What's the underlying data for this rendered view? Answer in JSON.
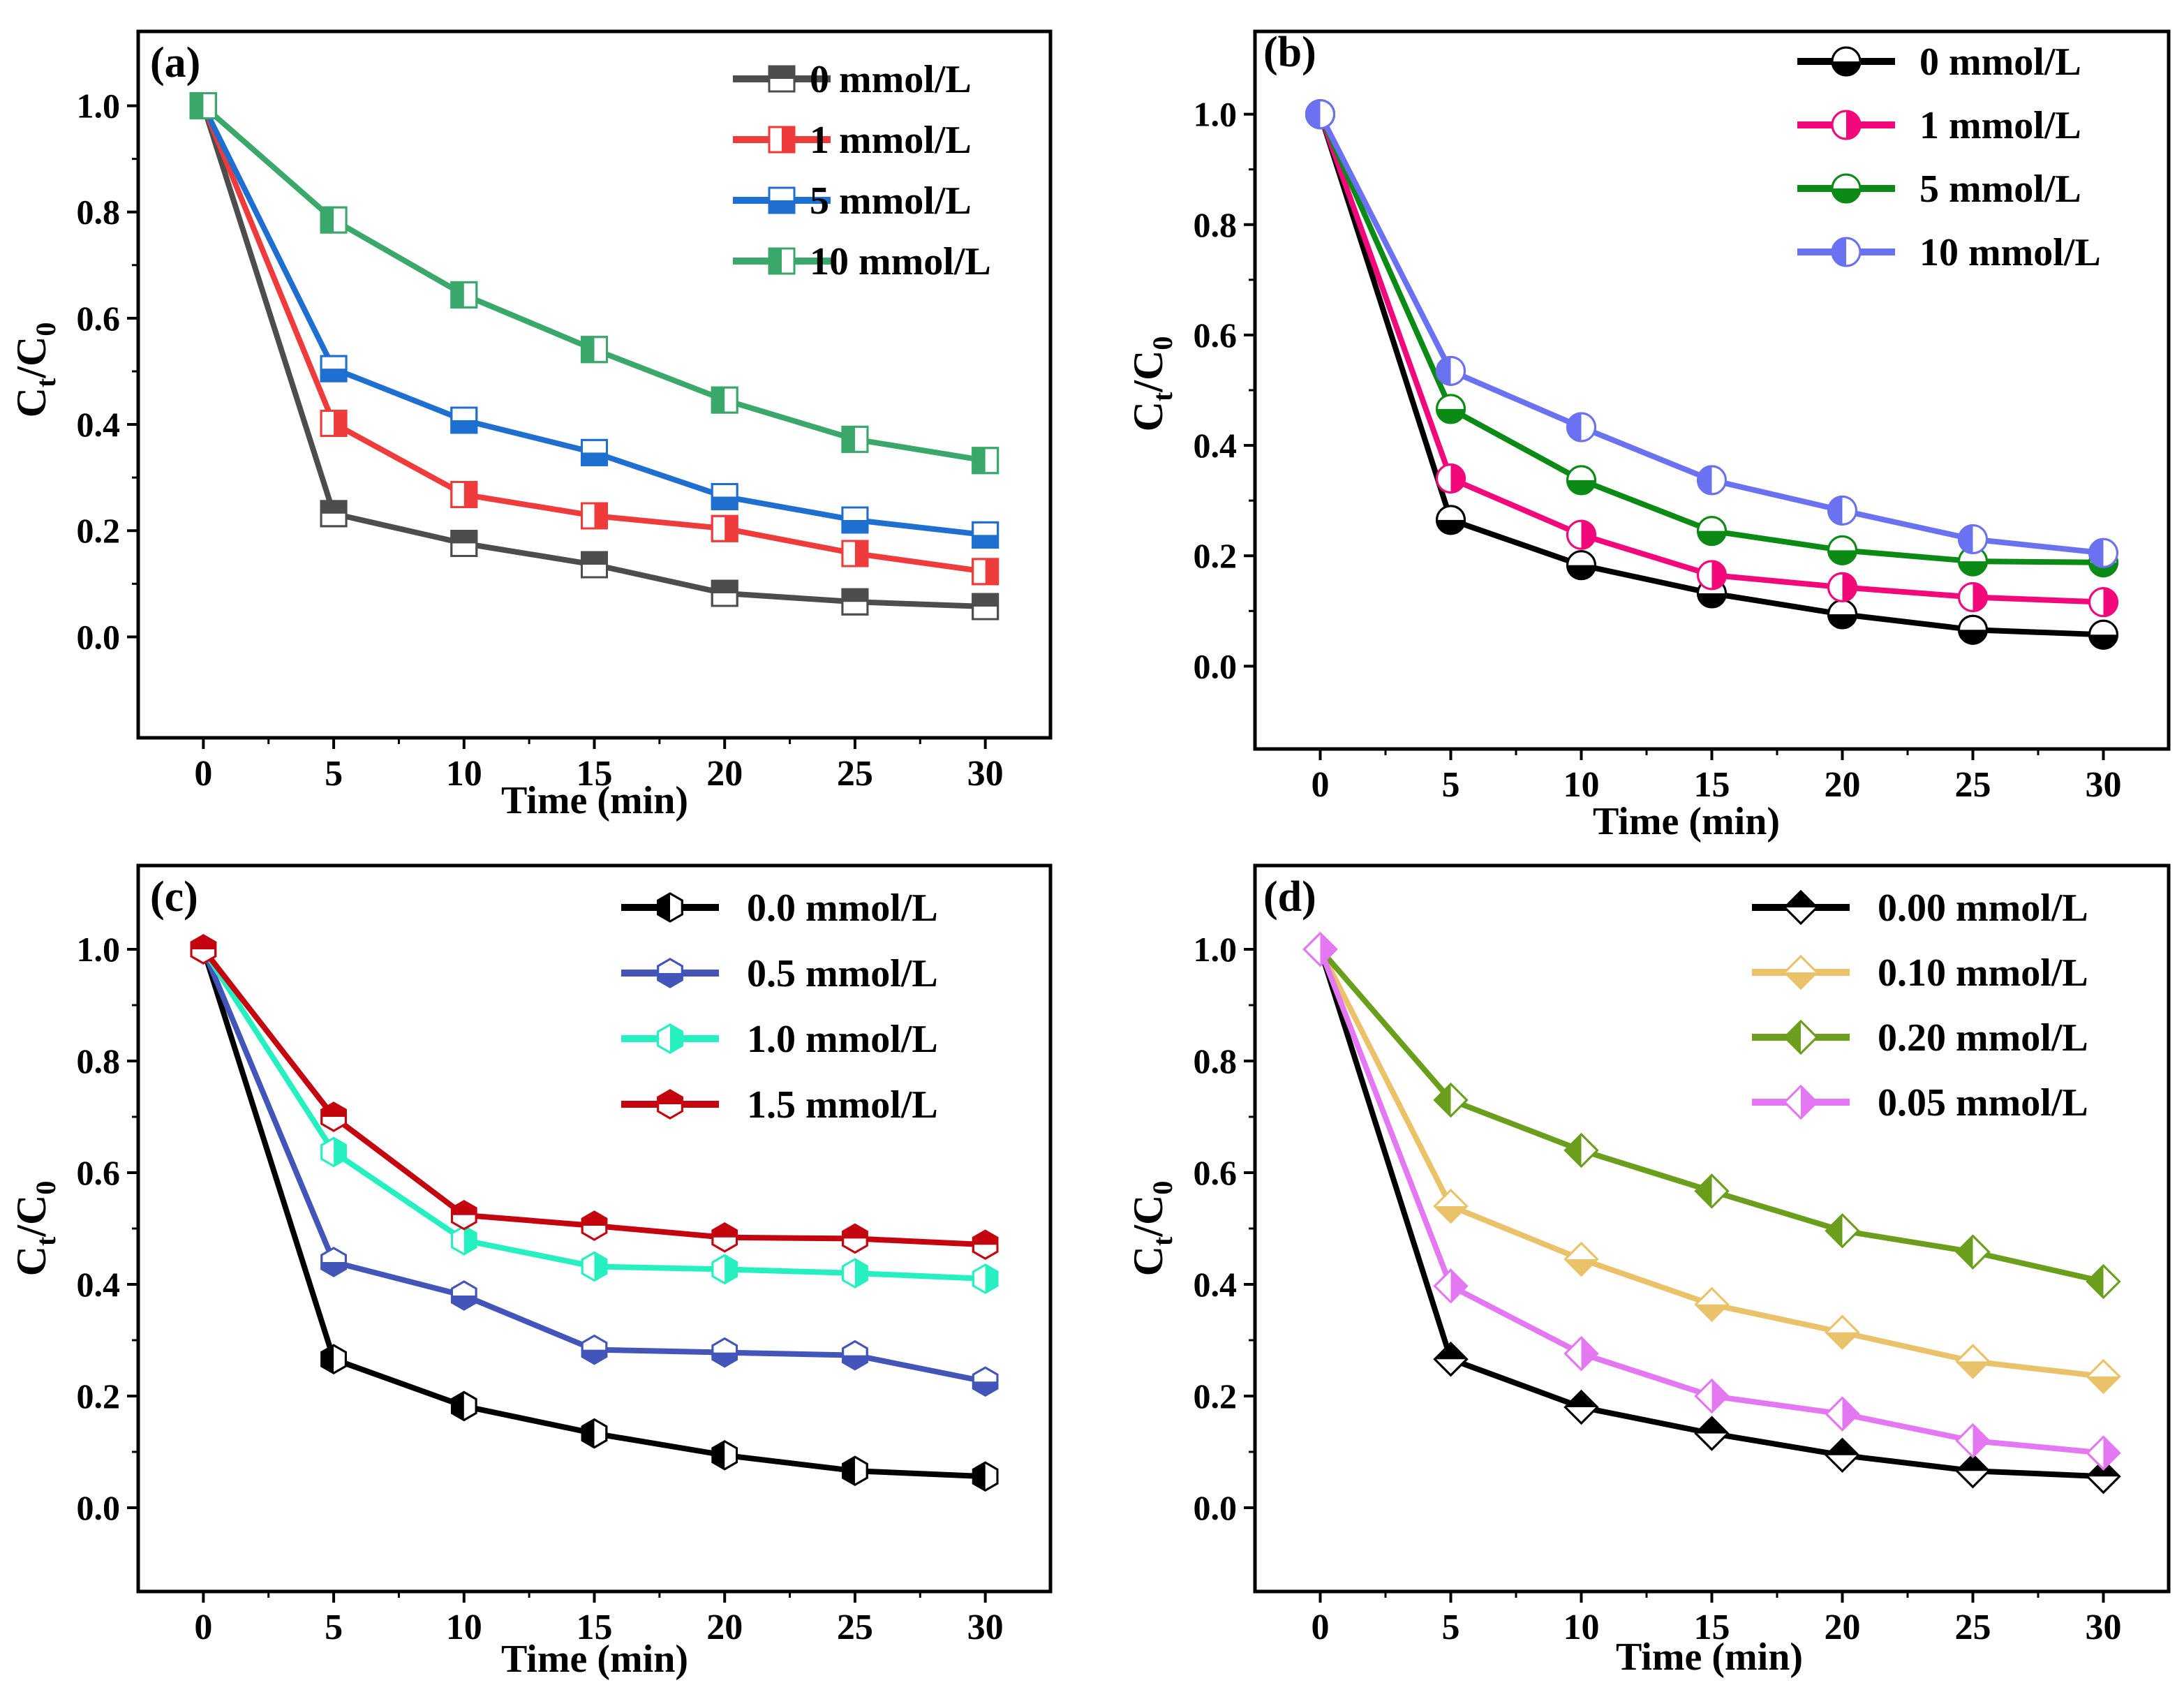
{
  "figure": {
    "x_tick_labels": [
      "0",
      "5",
      "10",
      "15",
      "20",
      "25",
      "30"
    ],
    "y_tick_labels": [
      "0.0",
      "0.2",
      "0.4",
      "0.6",
      "0.8",
      "1.0"
    ]
  },
  "chart_data": [
    {
      "type": "line",
      "panel_label": "(a)",
      "xlabel": "Time (min)",
      "ylabel_main": "C",
      "ylabel_sub1": "t",
      "ylabel_slash": "/C",
      "ylabel_sub2": "0",
      "x": [
        0,
        5,
        10,
        15,
        20,
        25,
        30
      ],
      "xlim": [
        -2.5,
        32.5
      ],
      "ylim": [
        -0.19,
        1.14
      ],
      "marker": "square",
      "legend_position": "top-right",
      "series": [
        {
          "name": "0 mmol/L",
          "color": "#4d4d4d",
          "fill": "top",
          "values": [
            1.0,
            0.232,
            0.176,
            0.136,
            0.082,
            0.066,
            0.057
          ]
        },
        {
          "name": "1 mmol/L",
          "color": "#ef3b3b",
          "fill": "right",
          "values": [
            1.0,
            0.402,
            0.268,
            0.228,
            0.204,
            0.157,
            0.123
          ]
        },
        {
          "name": "5 mmol/L",
          "color": "#1f6fd1",
          "fill": "bottom",
          "values": [
            1.0,
            0.505,
            0.408,
            0.347,
            0.264,
            0.22,
            0.192
          ]
        },
        {
          "name": "10 mmol/L",
          "color": "#3aa86b",
          "fill": "left",
          "values": [
            1.0,
            0.785,
            0.644,
            0.541,
            0.446,
            0.372,
            0.332
          ]
        }
      ]
    },
    {
      "type": "line",
      "panel_label": "(b)",
      "xlabel": "Time (min)",
      "ylabel_main": "C",
      "ylabel_sub1": "t",
      "ylabel_slash": "/C",
      "ylabel_sub2": "0",
      "x": [
        0,
        5,
        10,
        15,
        20,
        25,
        30
      ],
      "xlim": [
        -2.5,
        32.5
      ],
      "ylim": [
        -0.15,
        1.15
      ],
      "marker": "circle",
      "legend_position": "top-right",
      "series": [
        {
          "name": "0 mmol/L",
          "color": "#000000",
          "fill": "bottom",
          "values": [
            1.0,
            0.265,
            0.183,
            0.132,
            0.094,
            0.066,
            0.057
          ]
        },
        {
          "name": "1 mmol/L",
          "color": "#f2087a",
          "fill": "right",
          "values": [
            1.0,
            0.34,
            0.238,
            0.165,
            0.143,
            0.125,
            0.116
          ]
        },
        {
          "name": "5 mmol/L",
          "color": "#0b8a15",
          "fill": "bottom",
          "values": [
            1.0,
            0.466,
            0.337,
            0.245,
            0.21,
            0.19,
            0.188
          ]
        },
        {
          "name": "10 mmol/L",
          "color": "#6a72f2",
          "fill": "left",
          "values": [
            1.0,
            0.535,
            0.433,
            0.337,
            0.282,
            0.23,
            0.205
          ]
        }
      ]
    },
    {
      "type": "line",
      "panel_label": "(c)",
      "xlabel": "Time (min)",
      "ylabel_main": "C",
      "ylabel_sub1": "t",
      "ylabel_slash": "/C",
      "ylabel_sub2": "0",
      "x": [
        0,
        5,
        10,
        15,
        20,
        25,
        30
      ],
      "xlim": [
        -2.5,
        32.5
      ],
      "ylim": [
        -0.15,
        1.15
      ],
      "marker": "hexagon",
      "legend_position": "top-right",
      "series": [
        {
          "name": "0.0 mmol/L",
          "color": "#000000",
          "fill": "left",
          "values": [
            1.0,
            0.266,
            0.182,
            0.133,
            0.094,
            0.066,
            0.056
          ]
        },
        {
          "name": "0.5 mmol/L",
          "color": "#4355b8",
          "fill": "bottom",
          "values": [
            1.0,
            0.44,
            0.38,
            0.283,
            0.278,
            0.273,
            0.226
          ]
        },
        {
          "name": "1.0 mmol/L",
          "color": "#26f0c0",
          "fill": "right",
          "values": [
            1.0,
            0.637,
            0.479,
            0.432,
            0.427,
            0.42,
            0.41
          ]
        },
        {
          "name": "1.5 mmol/L",
          "color": "#c4050f",
          "fill": "top",
          "values": [
            1.0,
            0.7,
            0.524,
            0.505,
            0.484,
            0.482,
            0.471
          ]
        }
      ]
    },
    {
      "type": "line",
      "panel_label": "(d)",
      "xlabel": "Time (min)",
      "ylabel_main": "C",
      "ylabel_sub1": "t",
      "ylabel_slash": "/C",
      "ylabel_sub2": "0",
      "x": [
        0,
        5,
        10,
        15,
        20,
        25,
        30
      ],
      "xlim": [
        -2.5,
        32.5
      ],
      "ylim": [
        -0.15,
        1.15
      ],
      "marker": "diamond",
      "legend_position": "top-right",
      "series": [
        {
          "name": "0.00 mmol/L",
          "color": "#000000",
          "fill": "top",
          "values": [
            1.0,
            0.266,
            0.18,
            0.133,
            0.094,
            0.066,
            0.056
          ]
        },
        {
          "name": "0.10 mmol/L",
          "color": "#eac26a",
          "fill": "bottom",
          "values": [
            1.0,
            0.54,
            0.445,
            0.364,
            0.314,
            0.262,
            0.235
          ]
        },
        {
          "name": "0.20 mmol/L",
          "color": "#6c9e1e",
          "fill": "left",
          "values": [
            1.0,
            0.73,
            0.64,
            0.567,
            0.496,
            0.458,
            0.405
          ]
        },
        {
          "name": "0.05 mmol/L",
          "color": "#e478f2",
          "fill": "right",
          "values": [
            1.0,
            0.397,
            0.276,
            0.2,
            0.168,
            0.12,
            0.098
          ]
        }
      ]
    }
  ]
}
